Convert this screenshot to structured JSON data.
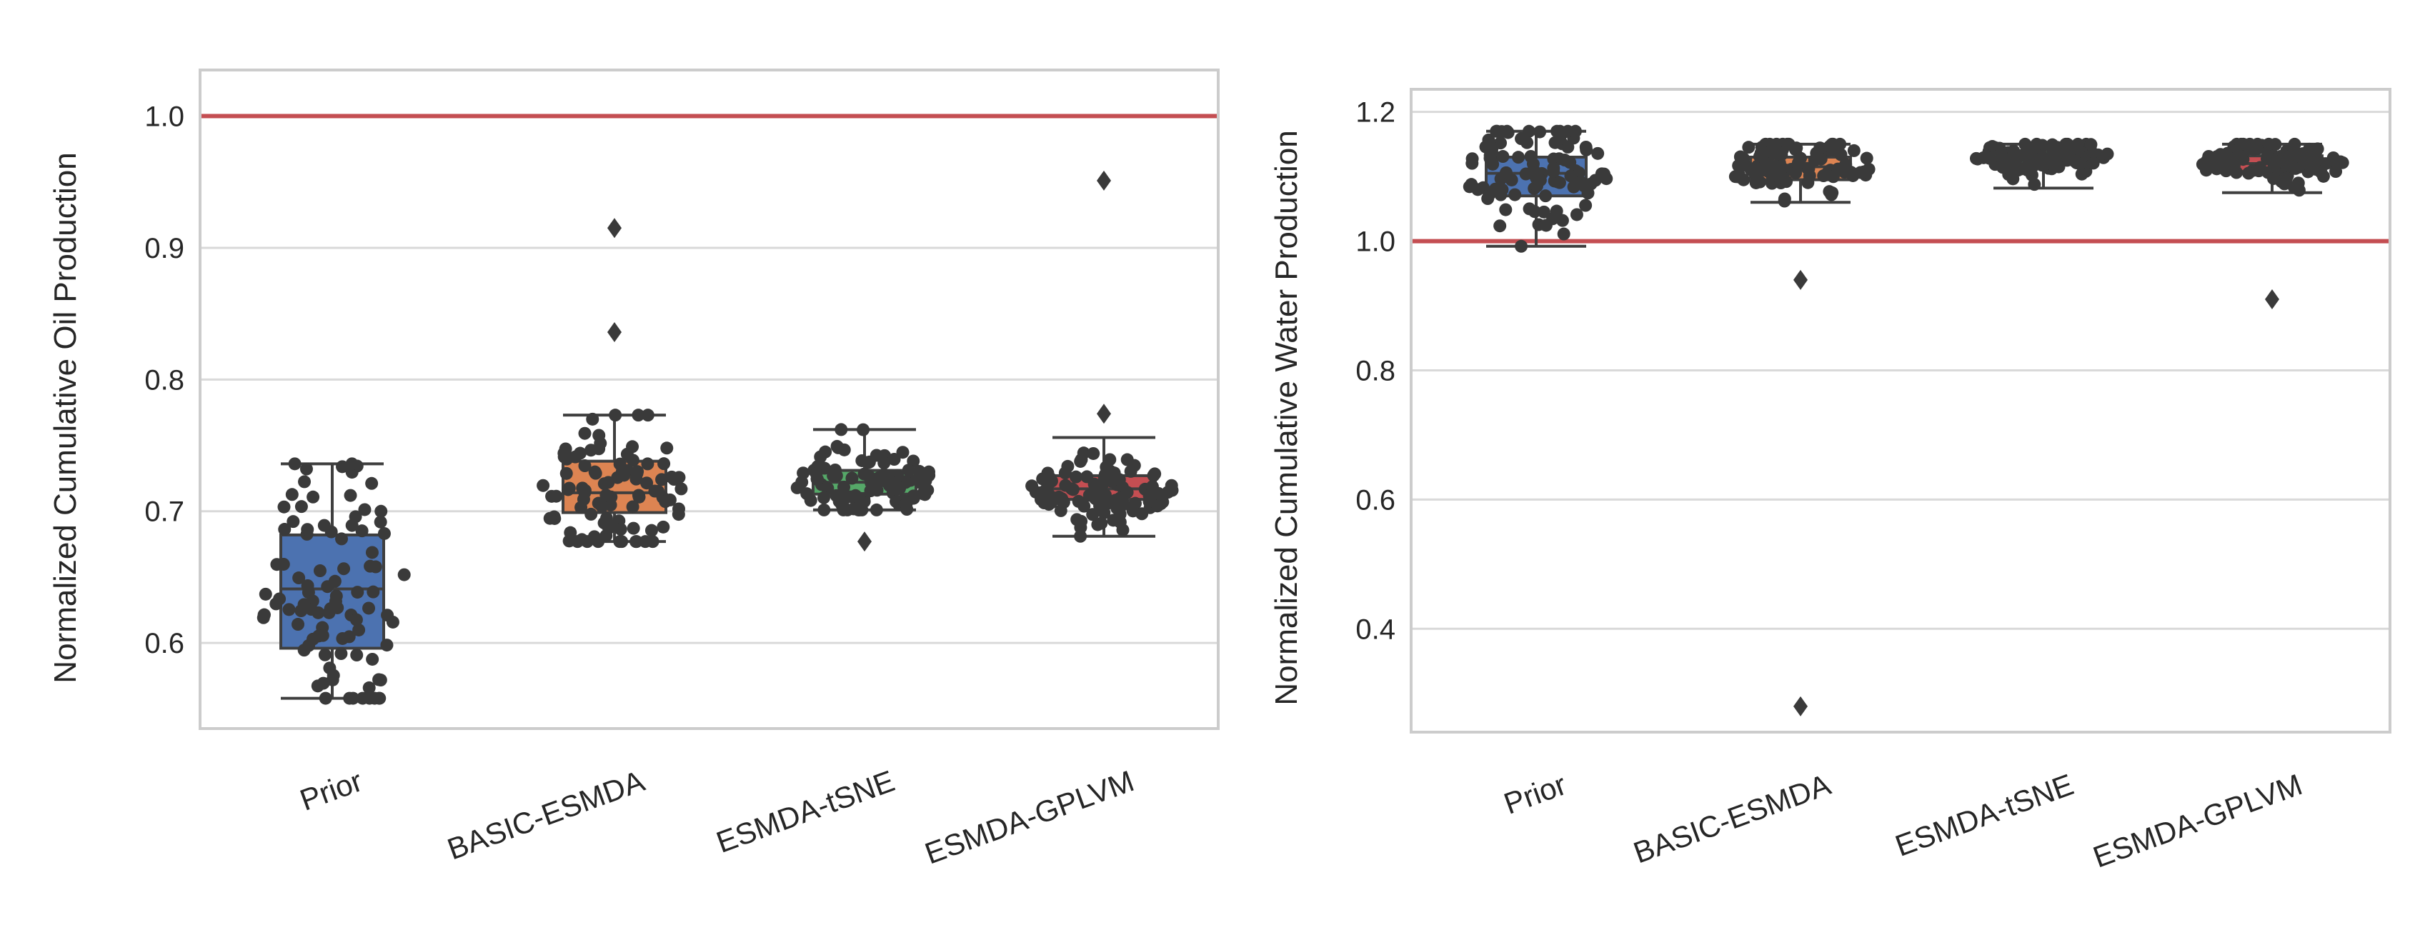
{
  "chart_data": [
    {
      "type": "box",
      "ylabel": "Normalized Cumulative Oil Production",
      "xlabel": "",
      "ylim": [
        0.535,
        1.035
      ],
      "yticks": [
        0.6,
        0.7,
        0.8,
        0.9,
        1.0
      ],
      "ytick_labels": [
        "0.6",
        "0.7",
        "0.8",
        "0.9",
        "1.0"
      ],
      "grid": true,
      "reference_line": 1.0,
      "categories": [
        "Prior",
        "BASIC-ESMDA",
        "ESMDA-tSNE",
        "ESMDA-GPLVM"
      ],
      "boxes": [
        {
          "q1": 0.596,
          "median": 0.641,
          "q3": 0.682,
          "whisker_low": 0.558,
          "whisker_high": 0.736,
          "outliers": []
        },
        {
          "q1": 0.699,
          "median": 0.714,
          "q3": 0.738,
          "whisker_low": 0.677,
          "whisker_high": 0.773,
          "outliers": [
            0.836,
            0.915
          ]
        },
        {
          "q1": 0.713,
          "median": 0.722,
          "q3": 0.731,
          "whisker_low": 0.701,
          "whisker_high": 0.762,
          "outliers": [
            0.677
          ]
        },
        {
          "q1": 0.709,
          "median": 0.717,
          "q3": 0.727,
          "whisker_low": 0.681,
          "whisker_high": 0.756,
          "outliers": [
            0.774,
            0.951
          ]
        }
      ]
    },
    {
      "type": "box",
      "ylabel": "Normalized Cumulative Water Production",
      "xlabel": "",
      "ylim": [
        0.24,
        1.235
      ],
      "yticks": [
        0.4,
        0.6,
        0.8,
        1.0,
        1.2
      ],
      "ytick_labels": [
        "0.4",
        "0.6",
        "0.8",
        "1.0",
        "1.2"
      ],
      "grid": true,
      "reference_line": 1.0,
      "categories": [
        "Prior",
        "BASIC-ESMDA",
        "ESMDA-tSNE",
        "ESMDA-GPLVM"
      ],
      "boxes": [
        {
          "q1": 1.07,
          "median": 1.105,
          "q3": 1.13,
          "whisker_low": 0.992,
          "whisker_high": 1.17,
          "outliers": []
        },
        {
          "q1": 1.095,
          "median": 1.115,
          "q3": 1.13,
          "whisker_low": 1.06,
          "whisker_high": 1.15,
          "outliers": [
            0.94,
            0.28
          ]
        },
        {
          "q1": 1.12,
          "median": 1.13,
          "q3": 1.14,
          "whisker_low": 1.082,
          "whisker_high": 1.15,
          "outliers": []
        },
        {
          "q1": 1.108,
          "median": 1.12,
          "q3": 1.132,
          "whisker_low": 1.075,
          "whisker_high": 1.15,
          "outliers": [
            0.91
          ]
        }
      ]
    }
  ],
  "colors": {
    "box_fill": [
      "#4c72b0",
      "#dd8452",
      "#55a868",
      "#c44e52"
    ],
    "reference_line": "#c44e52",
    "points": "#3a3a3a",
    "box_edge": "#3f3f3f",
    "grid": "#d9d9d9",
    "frame": "#cccccc"
  }
}
